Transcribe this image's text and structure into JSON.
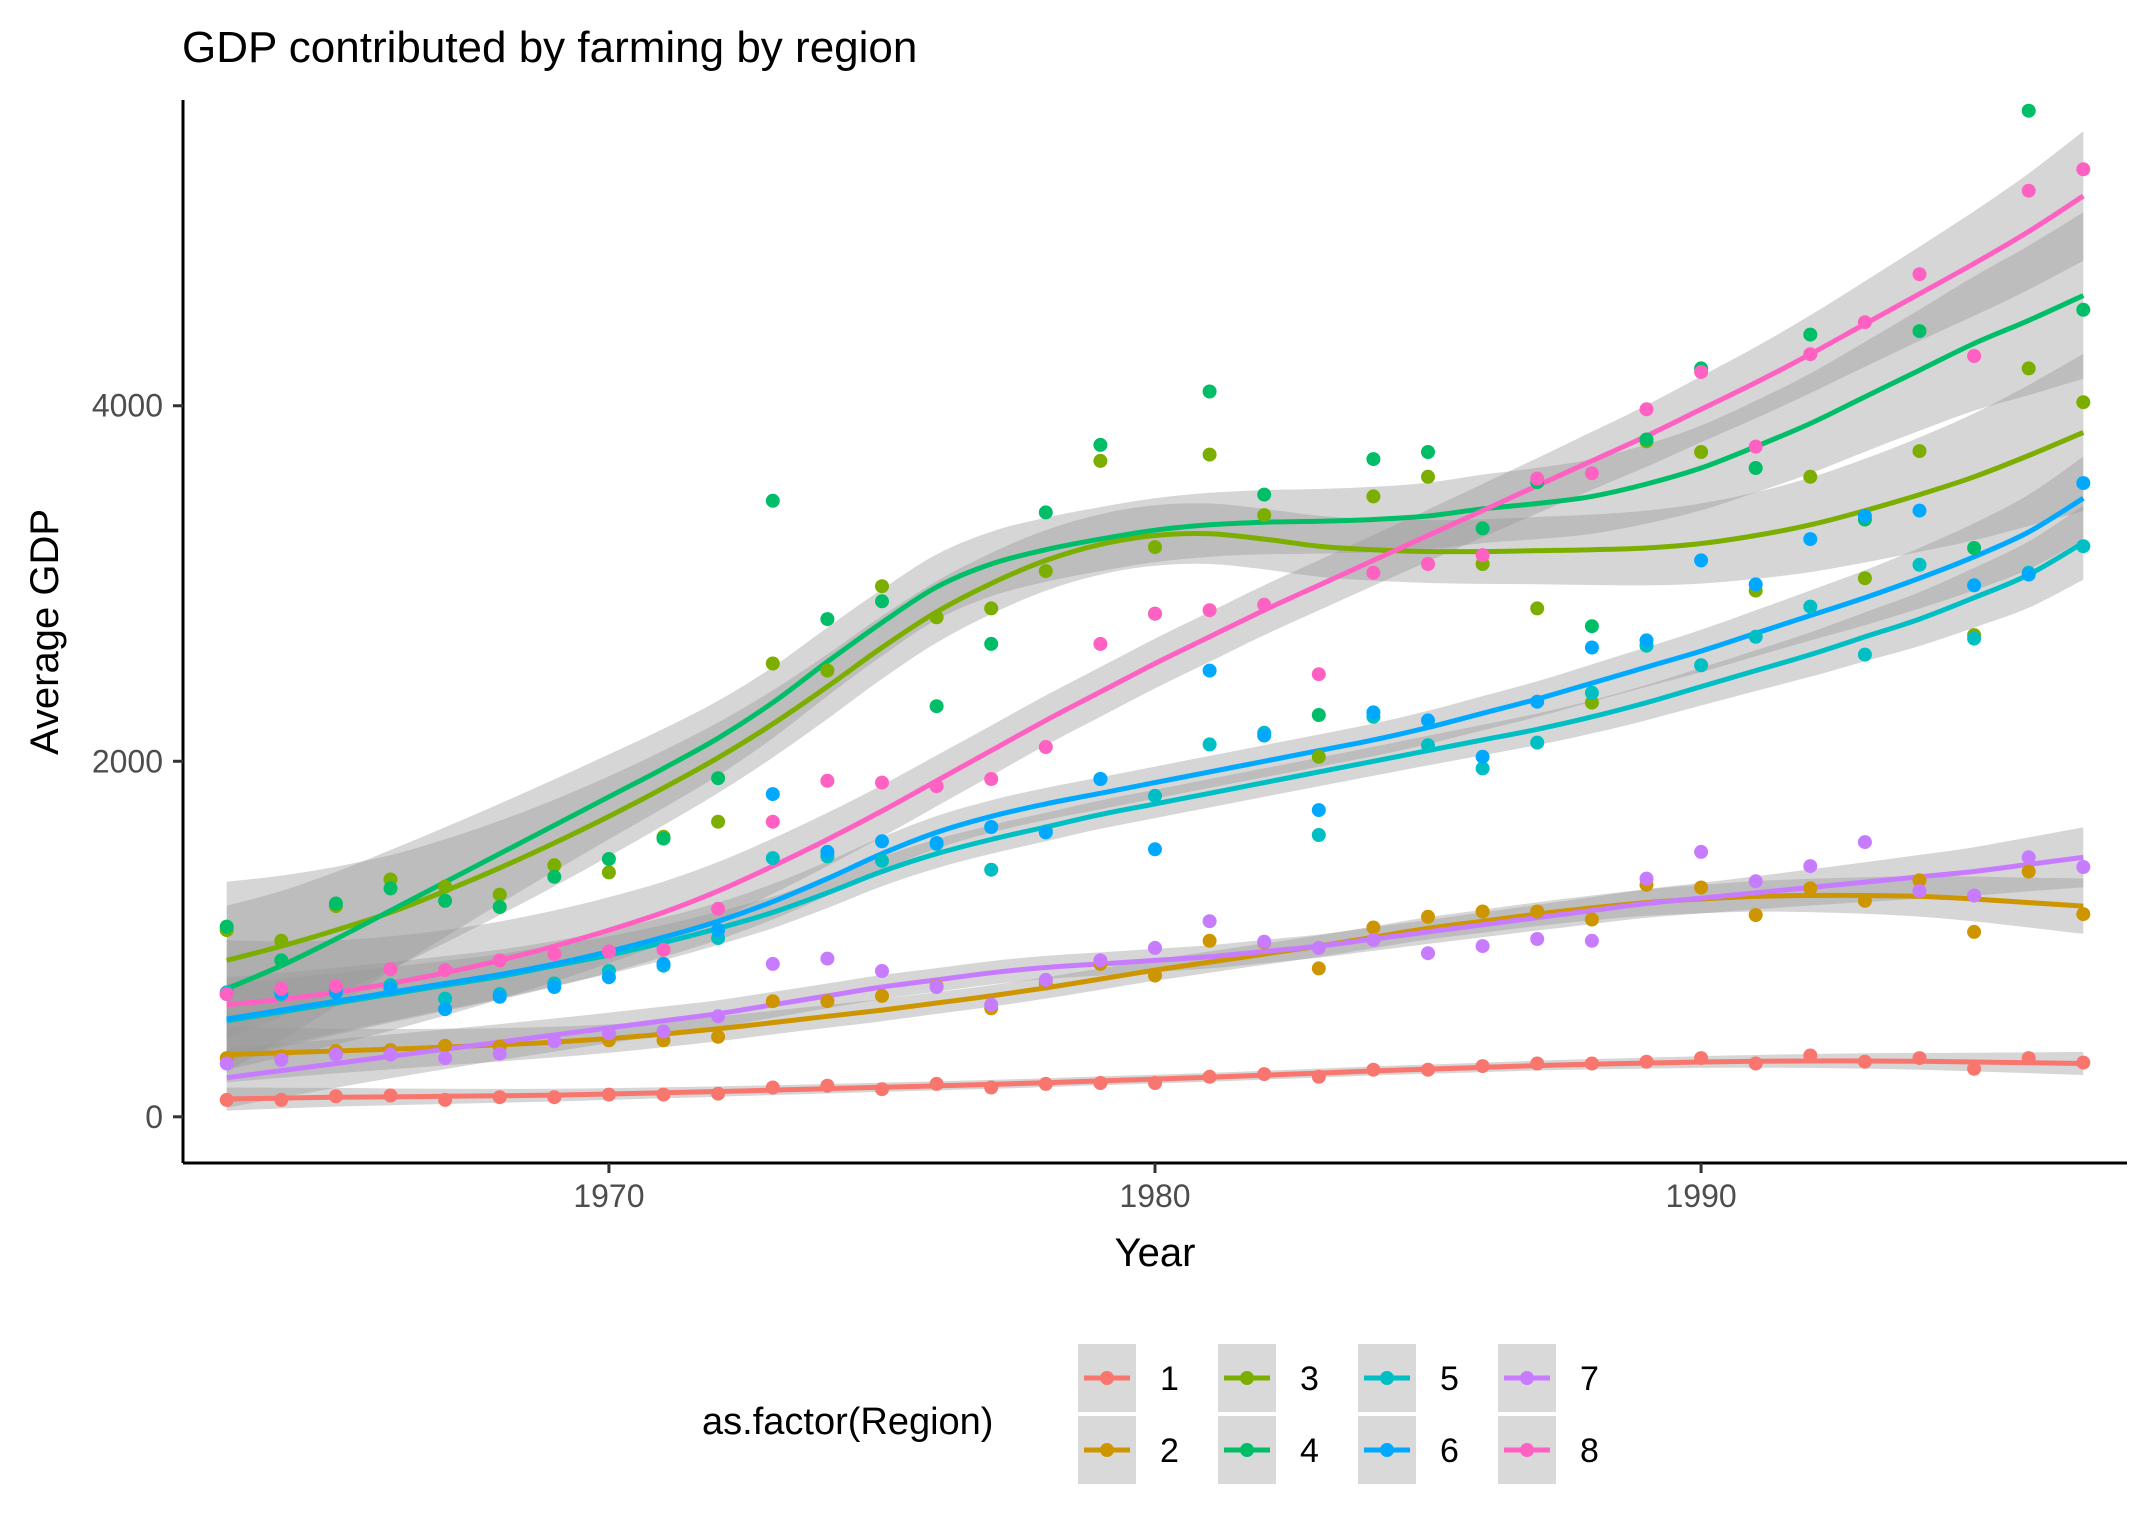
{
  "chart_data": {
    "type": "scatter",
    "title": "GDP contributed by farming by region",
    "xlabel": "Year",
    "ylabel": "Average GDP",
    "xlim": [
      1962.2,
      1997.8
    ],
    "ylim": [
      -260,
      5720
    ],
    "x_ticks": [
      1970,
      1980,
      1990
    ],
    "y_ticks": [
      0,
      2000,
      4000
    ],
    "grid": false,
    "smoother": "loess with confidence band",
    "legend": {
      "title": "as.factor(Region)",
      "position": "bottom",
      "entries": [
        "1",
        "2",
        "3",
        "4",
        "5",
        "6",
        "7",
        "8"
      ]
    },
    "x": [
      1963,
      1964,
      1965,
      1966,
      1967,
      1968,
      1969,
      1970,
      1971,
      1972,
      1973,
      1974,
      1975,
      1976,
      1977,
      1978,
      1979,
      1980,
      1981,
      1982,
      1983,
      1984,
      1985,
      1986,
      1987,
      1988,
      1989,
      1990,
      1991,
      1992,
      1993,
      1994,
      1995,
      1996,
      1997
    ],
    "series": [
      {
        "name": "1",
        "color": "#F8766D",
        "values": [
          95,
          95,
          115,
          120,
          95,
          110,
          110,
          125,
          125,
          130,
          165,
          175,
          155,
          185,
          165,
          185,
          190,
          190,
          225,
          240,
          225,
          265,
          265,
          285,
          300,
          300,
          310,
          330,
          300,
          345,
          310,
          330,
          270,
          330,
          305
        ],
        "smooth": [
          100,
          105,
          110,
          112,
          115,
          118,
          122,
          128,
          135,
          142,
          150,
          158,
          166,
          174,
          182,
          192,
          202,
          212,
          222,
          234,
          246,
          258,
          268,
          278,
          288,
          296,
          302,
          308,
          312,
          314,
          314,
          312,
          308,
          304,
          300
        ],
        "band": 25
      },
      {
        "name": "2",
        "color": "#CD9600",
        "values": [
          330,
          340,
          370,
          375,
          400,
          395,
          425,
          430,
          430,
          450,
          650,
          650,
          680,
          735,
          610,
          750,
          860,
          795,
          990,
          980,
          835,
          1065,
          1125,
          1155,
          1155,
          1110,
          1305,
          1290,
          1135,
          1285,
          1215,
          1330,
          1040,
          1380,
          1140
        ],
        "smooth": [
          350,
          360,
          370,
          380,
          392,
          405,
          420,
          440,
          465,
          495,
          530,
          565,
          600,
          640,
          680,
          725,
          775,
          825,
          870,
          915,
          960,
          1010,
          1060,
          1100,
          1140,
          1175,
          1205,
          1225,
          1240,
          1245,
          1245,
          1240,
          1225,
          1205,
          1185
        ],
        "band": 60
      },
      {
        "name": "3",
        "color": "#7CAE00",
        "values": [
          1050,
          990,
          1185,
          1335,
          1295,
          1250,
          1415,
          1375,
          1575,
          1660,
          2550,
          2510,
          2985,
          2810,
          2860,
          3070,
          3690,
          3205,
          3725,
          3385,
          2025,
          3490,
          3600,
          3110,
          2860,
          2330,
          3800,
          3740,
          2960,
          3600,
          3030,
          3745,
          2710,
          4210,
          4020
        ],
        "smooth": [
          880,
          960,
          1050,
          1150,
          1270,
          1400,
          1540,
          1690,
          1850,
          2020,
          2210,
          2420,
          2640,
          2840,
          3000,
          3130,
          3220,
          3270,
          3280,
          3250,
          3210,
          3190,
          3180,
          3180,
          3185,
          3190,
          3200,
          3225,
          3270,
          3330,
          3410,
          3500,
          3600,
          3720,
          3850
        ],
        "band": 170
      },
      {
        "name": "4",
        "color": "#00BE67",
        "values": [
          1070,
          880,
          1200,
          1285,
          1215,
          1180,
          1350,
          1450,
          1565,
          1905,
          3465,
          2800,
          2900,
          2310,
          2660,
          3400,
          3780,
          2830,
          4080,
          3500,
          2260,
          3700,
          3740,
          3310,
          3570,
          2760,
          3810,
          4210,
          3650,
          4400,
          3360,
          4420,
          3200,
          5660,
          4540
        ],
        "smooth": [
          720,
          850,
          1000,
          1160,
          1320,
          1480,
          1640,
          1800,
          1960,
          2130,
          2330,
          2560,
          2780,
          2980,
          3110,
          3190,
          3250,
          3300,
          3330,
          3345,
          3350,
          3360,
          3380,
          3420,
          3450,
          3490,
          3560,
          3650,
          3770,
          3900,
          4050,
          4200,
          4350,
          4480,
          4620
        ],
        "band": 180
      },
      {
        "name": "5",
        "color": "#00BFC4",
        "values": [
          700,
          690,
          720,
          740,
          665,
          690,
          750,
          820,
          850,
          1005,
          1455,
          1465,
          1440,
          1535,
          1390,
          1605,
          1900,
          1805,
          2095,
          2160,
          1585,
          2250,
          2090,
          1960,
          2105,
          2385,
          2650,
          2540,
          2700,
          2870,
          2600,
          3105,
          2690,
          3060,
          3210
        ],
        "smooth": [
          540,
          590,
          640,
          690,
          740,
          790,
          850,
          910,
          980,
          1060,
          1150,
          1260,
          1380,
          1480,
          1560,
          1630,
          1700,
          1760,
          1820,
          1880,
          1940,
          2000,
          2060,
          2120,
          2180,
          2250,
          2330,
          2420,
          2510,
          2600,
          2700,
          2800,
          2920,
          3050,
          3230
        ],
        "band": 80
      },
      {
        "name": "6",
        "color": "#00A9FF",
        "values": [
          690,
          700,
          700,
          720,
          605,
          675,
          730,
          785,
          860,
          1050,
          1815,
          1490,
          1550,
          1540,
          1630,
          1600,
          1900,
          1505,
          2510,
          2145,
          1725,
          2275,
          2230,
          2025,
          2335,
          2640,
          2680,
          3130,
          2995,
          3250,
          3380,
          3410,
          2990,
          3050,
          3565
        ],
        "smooth": [
          550,
          600,
          650,
          700,
          750,
          800,
          860,
          930,
          1010,
          1100,
          1210,
          1340,
          1480,
          1600,
          1690,
          1760,
          1820,
          1880,
          1940,
          2000,
          2060,
          2120,
          2190,
          2270,
          2350,
          2440,
          2530,
          2620,
          2720,
          2820,
          2920,
          3030,
          3150,
          3290,
          3480
        ],
        "band": 90
      },
      {
        "name": "7",
        "color": "#C77CFF",
        "values": [
          300,
          320,
          350,
          350,
          330,
          355,
          425,
          470,
          480,
          565,
          860,
          890,
          820,
          730,
          630,
          770,
          880,
          950,
          1100,
          985,
          950,
          995,
          920,
          960,
          1000,
          990,
          1340,
          1490,
          1325,
          1410,
          1545,
          1270,
          1245,
          1460,
          1405
        ],
        "smooth": [
          220,
          260,
          300,
          340,
          380,
          420,
          460,
          500,
          540,
          580,
          630,
          680,
          730,
          770,
          810,
          840,
          860,
          880,
          900,
          930,
          960,
          1000,
          1040,
          1080,
          1120,
          1160,
          1200,
          1230,
          1260,
          1290,
          1320,
          1350,
          1380,
          1420,
          1460
        ],
        "band": 65
      },
      {
        "name": "8",
        "color": "#FF61C3",
        "values": [
          690,
          720,
          735,
          830,
          825,
          880,
          915,
          930,
          940,
          1170,
          1660,
          1890,
          1880,
          1860,
          1900,
          2080,
          2660,
          2830,
          2850,
          2880,
          2490,
          3060,
          3110,
          3160,
          3590,
          3620,
          3980,
          4190,
          3770,
          4290,
          4470,
          4740,
          4280,
          5210,
          5330
        ],
        "smooth": [
          630,
          660,
          700,
          750,
          810,
          880,
          960,
          1050,
          1150,
          1270,
          1410,
          1560,
          1720,
          1890,
          2060,
          2230,
          2390,
          2550,
          2700,
          2850,
          2990,
          3130,
          3270,
          3410,
          3550,
          3690,
          3830,
          3980,
          4130,
          4290,
          4460,
          4630,
          4800,
          4980,
          5180
        ],
        "band": 140
      }
    ]
  }
}
